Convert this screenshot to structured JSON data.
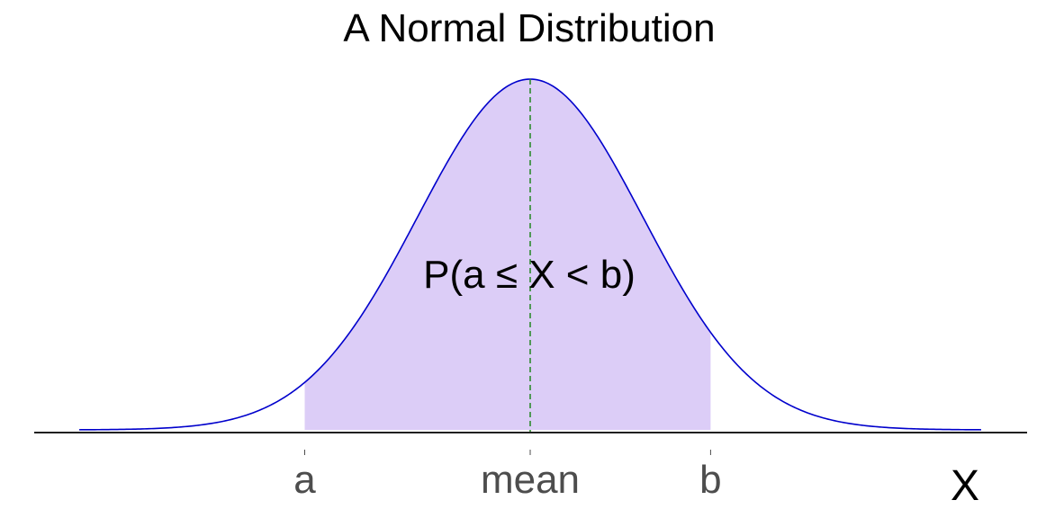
{
  "chart_data": {
    "type": "area",
    "title": "A Normal Distribution",
    "xlabel": "X",
    "ylabel": "",
    "xlim": [
      -4,
      4
    ],
    "mean": 0,
    "sd": 1,
    "shaded_interval": [
      -2,
      1.6
    ],
    "tick_labels": [
      {
        "x": -2,
        "label": "a"
      },
      {
        "x": 0,
        "label": "mean"
      },
      {
        "x": 1.6,
        "label": "b"
      }
    ],
    "annotation": "P(a ≤ X < b)",
    "grid": false,
    "legend": "none",
    "series": [
      {
        "values_from": "normal_pdf"
      }
    ]
  },
  "colors": {
    "curve": "#0000cc",
    "fill": "#dccdf7",
    "mean_line": "#2e8b2e",
    "axis": "#000000",
    "tick_label": "#4d4d4d"
  }
}
